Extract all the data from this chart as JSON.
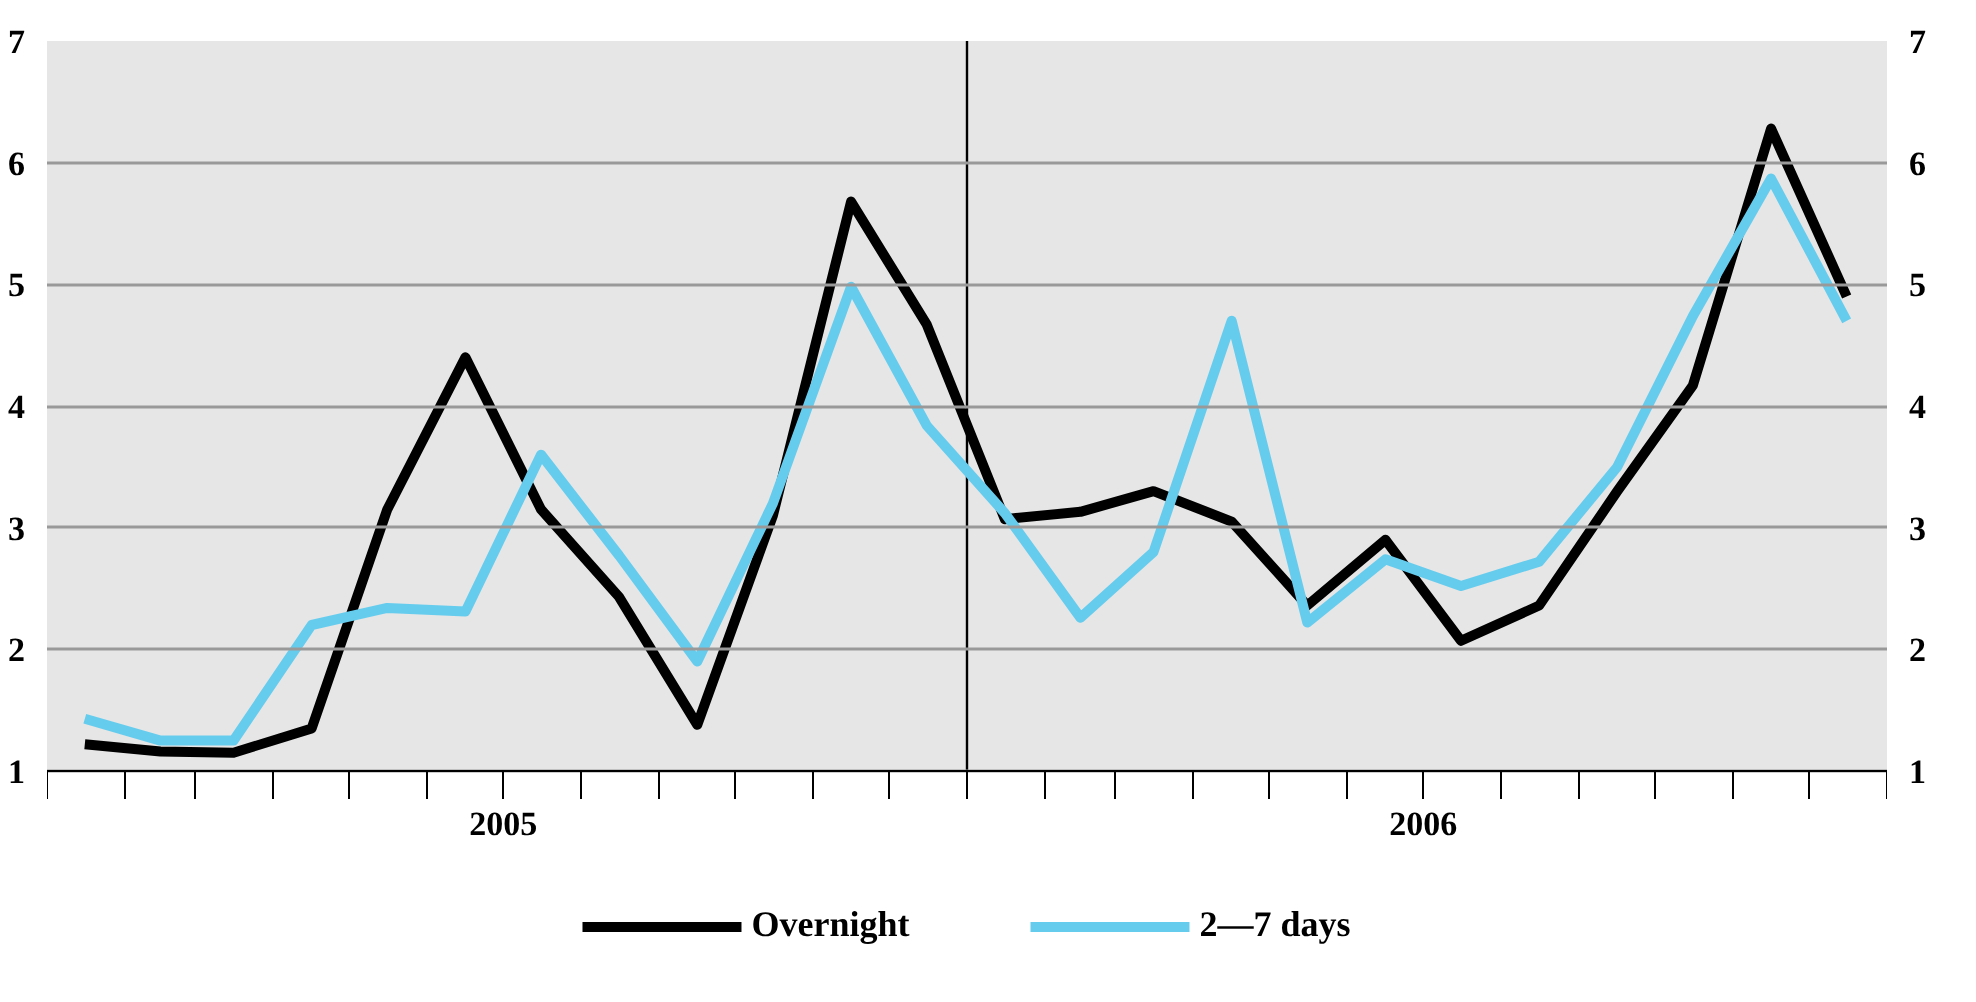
{
  "chart_data": {
    "type": "line",
    "x": [
      "2005-01-16",
      "2005-02-15",
      "2005-03-16",
      "2005-04-16",
      "2005-05-16",
      "2005-06-16",
      "2005-07-16",
      "2005-08-16",
      "2005-09-16",
      "2005-10-16",
      "2005-11-16",
      "2005-12-16",
      "2006-01-16",
      "2006-02-15",
      "2006-03-16",
      "2006-04-16",
      "2006-05-16",
      "2006-06-16",
      "2006-07-16",
      "2006-08-16",
      "2006-09-16",
      "2006-10-16",
      "2006-11-16",
      "2006-12-16"
    ],
    "xlim": [
      "2005-01-01",
      "2007-01-01"
    ],
    "xticks": [
      {
        "value": "2005-01-01",
        "label": null
      },
      {
        "value": "2005-02-01",
        "label": null
      },
      {
        "value": "2005-03-01",
        "label": null
      },
      {
        "value": "2005-04-01",
        "label": null
      },
      {
        "value": "2005-05-01",
        "label": null
      },
      {
        "value": "2005-06-01",
        "label": null
      },
      {
        "value": "2005-07-01",
        "label": "2005"
      },
      {
        "value": "2005-08-01",
        "label": null
      },
      {
        "value": "2005-09-01",
        "label": null
      },
      {
        "value": "2005-10-01",
        "label": null
      },
      {
        "value": "2005-11-01",
        "label": null
      },
      {
        "value": "2005-12-01",
        "label": null
      },
      {
        "value": "2006-01-01",
        "label": null
      },
      {
        "value": "2006-02-01",
        "label": null
      },
      {
        "value": "2006-03-01",
        "label": null
      },
      {
        "value": "2006-04-01",
        "label": null
      },
      {
        "value": "2006-05-01",
        "label": null
      },
      {
        "value": "2006-06-01",
        "label": null
      },
      {
        "value": "2006-07-01",
        "label": "2006"
      },
      {
        "value": "2006-08-01",
        "label": null
      },
      {
        "value": "2006-09-01",
        "label": null
      },
      {
        "value": "2006-10-01",
        "label": null
      },
      {
        "value": "2006-11-01",
        "label": null
      },
      {
        "value": "2006-12-01",
        "label": null
      },
      {
        "value": "2007-01-01",
        "label": null
      }
    ],
    "ylim": [
      1,
      7
    ],
    "yticks": [
      1,
      2,
      3,
      4,
      5,
      6,
      7
    ],
    "y2lim": [
      1,
      7
    ],
    "y2ticks": [
      1,
      2,
      3,
      4,
      5,
      6,
      7
    ],
    "grid": "y",
    "legend": "bottom",
    "line_style": "solid",
    "marker": "none",
    "ref_lines": [
      {
        "axis": "x",
        "value": "2006-01-01",
        "label": null,
        "color": "#000000"
      }
    ],
    "series": [
      {
        "name": "Overnight",
        "color": "#000000",
        "values": [
          1.22,
          1.16,
          1.15,
          1.35,
          3.15,
          4.4,
          3.15,
          2.43,
          1.38,
          3.1,
          5.68,
          4.67,
          3.07,
          3.13,
          3.3,
          3.05,
          2.36,
          2.9,
          2.07,
          2.36,
          3.3,
          4.17,
          6.28,
          4.9
        ]
      },
      {
        "name": "2—7 days",
        "color": "#66ccee",
        "values": [
          1.43,
          1.25,
          1.25,
          2.2,
          2.34,
          2.31,
          3.6,
          2.77,
          1.9,
          3.2,
          4.98,
          3.84,
          3.12,
          2.26,
          2.8,
          4.7,
          2.22,
          2.74,
          2.52,
          2.72,
          3.5,
          4.74,
          5.87,
          4.7
        ]
      }
    ]
  }
}
